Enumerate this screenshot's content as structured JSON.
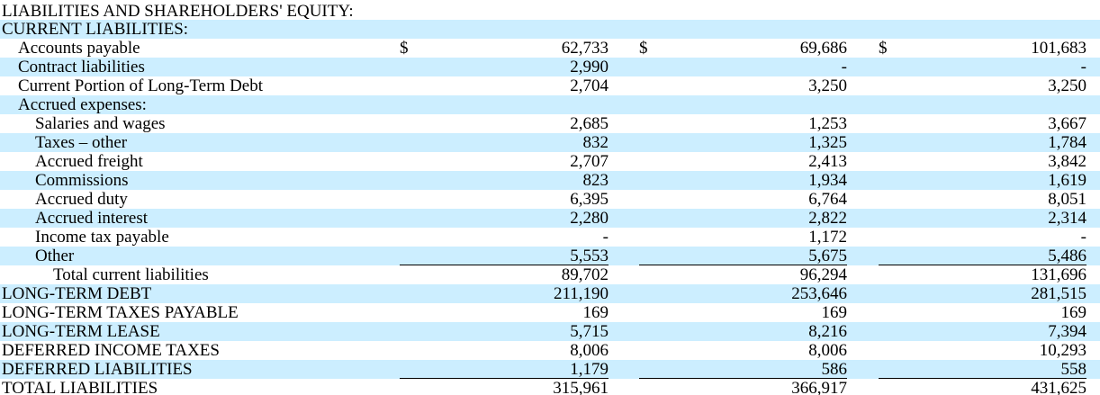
{
  "table": {
    "rows": [
      {
        "label": "LIABILITIES AND SHAREHOLDERS' EQUITY:"
      },
      {
        "label": "CURRENT LIABILITIES:"
      },
      {
        "label": "Accounts payable",
        "dollar_signs": [
          "$",
          "$",
          "$"
        ],
        "values": [
          "62,733",
          "69,686",
          "101,683"
        ]
      },
      {
        "label": "Contract liabilities",
        "values": [
          "2,990",
          "-",
          "-"
        ]
      },
      {
        "label": "Current Portion of Long-Term Debt",
        "values": [
          "2,704",
          "3,250",
          "3,250"
        ]
      },
      {
        "label": "Accrued expenses:"
      },
      {
        "label": "Salaries and wages",
        "values": [
          "2,685",
          "1,253",
          "3,667"
        ]
      },
      {
        "label": "Taxes – other",
        "values": [
          "832",
          "1,325",
          "1,784"
        ]
      },
      {
        "label": "Accrued freight",
        "values": [
          "2,707",
          "2,413",
          "3,842"
        ]
      },
      {
        "label": "Commissions",
        "values": [
          "823",
          "1,934",
          "1,619"
        ]
      },
      {
        "label": "Accrued duty",
        "values": [
          "6,395",
          "6,764",
          "8,051"
        ]
      },
      {
        "label": "Accrued interest",
        "values": [
          "2,280",
          "2,822",
          "2,314"
        ]
      },
      {
        "label": "Income tax payable",
        "values": [
          "-",
          "1,172",
          "-"
        ]
      },
      {
        "label": "Other",
        "values": [
          "5,553",
          "5,675",
          "5,486"
        ]
      },
      {
        "label": "Total current liabilities",
        "values": [
          "89,702",
          "96,294",
          "131,696"
        ]
      },
      {
        "label": "LONG-TERM DEBT",
        "values": [
          "211,190",
          "253,646",
          "281,515"
        ]
      },
      {
        "label": "LONG-TERM TAXES PAYABLE",
        "values": [
          "169",
          "169",
          "169"
        ]
      },
      {
        "label": "LONG-TERM LEASE",
        "values": [
          "5,715",
          "8,216",
          "7,394"
        ]
      },
      {
        "label": "DEFERRED INCOME TAXES",
        "values": [
          "8,006",
          "8,006",
          "10,293"
        ]
      },
      {
        "label": "DEFERRED LIABILITIES",
        "values": [
          "1,179",
          "586",
          "558"
        ]
      },
      {
        "label": "TOTAL LIABILITIES",
        "values": [
          "315,961",
          "366,917",
          "431,625"
        ]
      }
    ]
  }
}
